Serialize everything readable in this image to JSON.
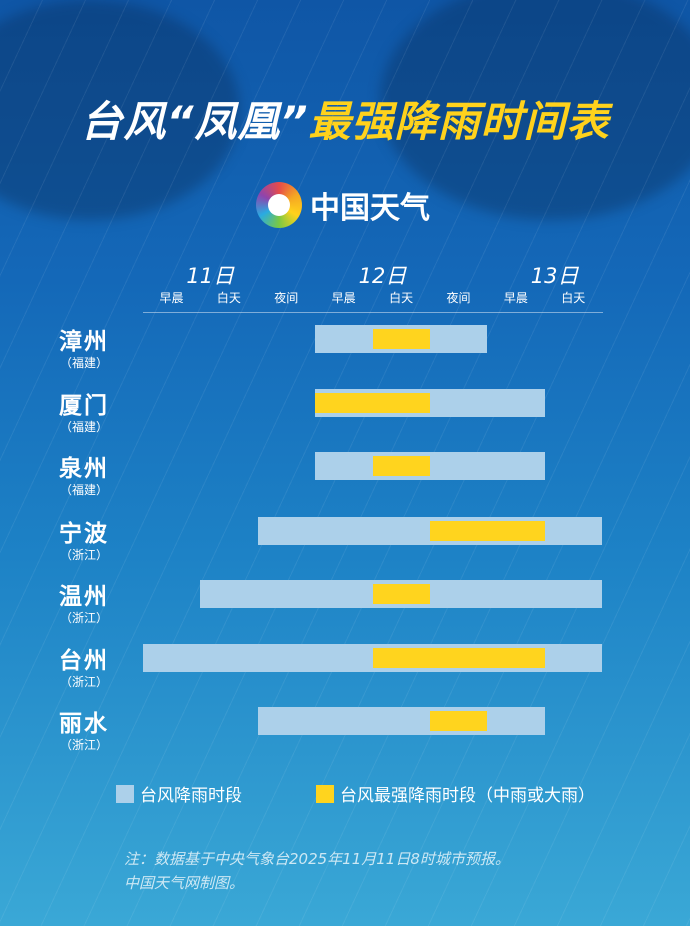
{
  "title": {
    "part1": "台风",
    "part2": "“凤凰”",
    "part3": "最强降雨时间表"
  },
  "logo": {
    "text": "中国天气"
  },
  "chart_data": {
    "type": "gantt",
    "days": [
      "11日",
      "12日",
      "13日"
    ],
    "periods": [
      "早晨",
      "白天",
      "夜间",
      "早晨",
      "白天",
      "夜间",
      "早晨",
      "白天"
    ],
    "period_days": [
      "11日",
      "11日",
      "11日",
      "12日",
      "12日",
      "12日",
      "13日",
      "13日"
    ],
    "rows": [
      {
        "city": "漳州",
        "province": "（福建）",
        "rain": [
          3,
          5
        ],
        "heavy": [
          4,
          4
        ]
      },
      {
        "city": "厦门",
        "province": "（福建）",
        "rain": [
          3,
          6
        ],
        "heavy": [
          3,
          4
        ]
      },
      {
        "city": "泉州",
        "province": "（福建）",
        "rain": [
          3,
          6
        ],
        "heavy": [
          4,
          4
        ]
      },
      {
        "city": "宁波",
        "province": "（浙江）",
        "rain": [
          2,
          7
        ],
        "heavy": [
          5,
          6
        ]
      },
      {
        "city": "温州",
        "province": "（浙江）",
        "rain": [
          1,
          7
        ],
        "heavy": [
          4,
          4
        ]
      },
      {
        "city": "台州",
        "province": "（浙江）",
        "rain": [
          0,
          7
        ],
        "heavy": [
          4,
          6
        ]
      },
      {
        "city": "丽水",
        "province": "（浙江）",
        "rain": [
          2,
          6
        ],
        "heavy": [
          5,
          5
        ]
      }
    ],
    "legend": [
      {
        "label": "台风降雨时段",
        "color": "#acd0ea"
      },
      {
        "label": "台风最强降雨时段（中雨或大雨）",
        "color": "#ffd41e"
      }
    ]
  },
  "notes": [
    "注：数据基于中央气象台2025年11月11日8时城市预报。",
    "中国天气网制图。"
  ]
}
